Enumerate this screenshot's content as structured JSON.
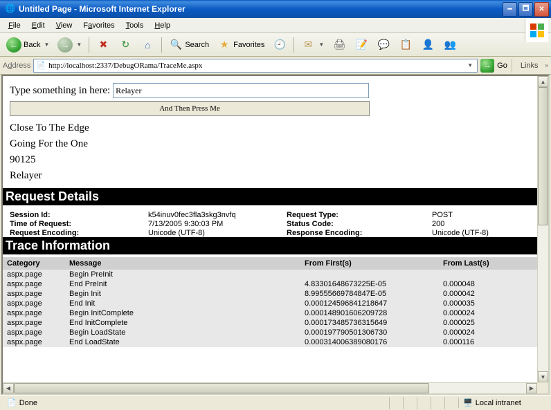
{
  "window": {
    "title": "Untitled Page - Microsoft Internet Explorer"
  },
  "menus": {
    "file": "File",
    "edit": "Edit",
    "view": "View",
    "favorites": "Favorites",
    "tools": "Tools",
    "help": "Help"
  },
  "toolbar": {
    "back": "Back",
    "search": "Search",
    "favorites": "Favorites"
  },
  "address": {
    "label": "Address",
    "url": "http://localhost:2337/DebugORama/TraceMe.aspx",
    "go": "Go",
    "links": "Links"
  },
  "page": {
    "input_label": "Type something in here:",
    "input_value": "Relayer",
    "button_label": "And Then Press Me",
    "items": [
      "Close To The Edge",
      "Going For the One",
      "90125",
      "Relayer"
    ]
  },
  "request_details": {
    "header": "Request Details",
    "session_id_label": "Session Id:",
    "session_id": "k54inuv0fec3fla3skg3nvfq",
    "request_type_label": "Request Type:",
    "request_type": "POST",
    "time_label": "Time of Request:",
    "time": "7/13/2005 9:30:03 PM",
    "status_label": "Status Code:",
    "status": "200",
    "req_enc_label": "Request Encoding:",
    "req_enc": "Unicode (UTF-8)",
    "res_enc_label": "Response Encoding:",
    "res_enc": "Unicode (UTF-8)"
  },
  "trace": {
    "header": "Trace Information",
    "cols": {
      "category": "Category",
      "message": "Message",
      "from_first": "From First(s)",
      "from_last": "From Last(s)"
    },
    "rows": [
      {
        "cat": "aspx.page",
        "msg": "Begin PreInit",
        "ff": "",
        "fl": ""
      },
      {
        "cat": "aspx.page",
        "msg": "End PreInit",
        "ff": "4.83301648673225E-05",
        "fl": "0.000048"
      },
      {
        "cat": "aspx.page",
        "msg": "Begin Init",
        "ff": "8.99555669784847E-05",
        "fl": "0.000042"
      },
      {
        "cat": "aspx.page",
        "msg": "End Init",
        "ff": "0.000124596841218647",
        "fl": "0.000035"
      },
      {
        "cat": "aspx.page",
        "msg": "Begin InitComplete",
        "ff": "0.000148901606209728",
        "fl": "0.000024"
      },
      {
        "cat": "aspx.page",
        "msg": "End InitComplete",
        "ff": "0.000173485736315649",
        "fl": "0.000025"
      },
      {
        "cat": "aspx.page",
        "msg": "Begin LoadState",
        "ff": "0.000197790501306730",
        "fl": "0.000024"
      },
      {
        "cat": "aspx.page",
        "msg": "End LoadState",
        "ff": "0.000314006389080176",
        "fl": "0.000116"
      }
    ]
  },
  "status": {
    "text": "Done",
    "zone": "Local intranet"
  },
  "colors": {
    "titlebar_top": "#0a5bc4",
    "chrome_bg": "#ece9d8",
    "section_bg": "#000000",
    "section_fg": "#ffffff",
    "table_header_bg": "#d0d0d0",
    "table_row_bg": "#e8e8e8",
    "input_border": "#7f9db9"
  }
}
